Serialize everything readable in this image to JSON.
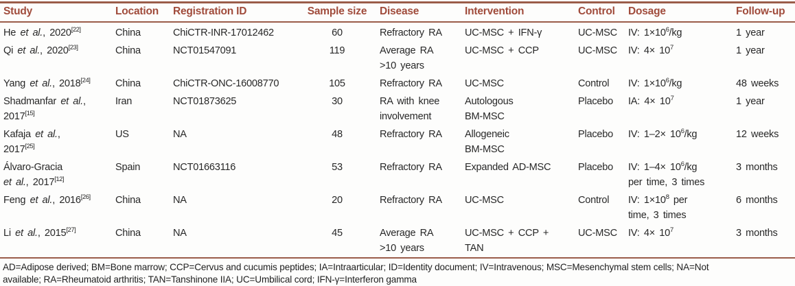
{
  "colors": {
    "header_text": "#a04b3b",
    "rule": "#9a5c49",
    "body_text": "#282828",
    "background": "#fdfdfc"
  },
  "table": {
    "columns": [
      {
        "key": "study",
        "label": "Study"
      },
      {
        "key": "location",
        "label": "Location"
      },
      {
        "key": "reg_id",
        "label": "Registration ID"
      },
      {
        "key": "sample_size",
        "label": "Sample size"
      },
      {
        "key": "disease",
        "label": "Disease"
      },
      {
        "key": "intervention",
        "label": "Intervention"
      },
      {
        "key": "control",
        "label": "Control"
      },
      {
        "key": "dosage",
        "label": "Dosage"
      },
      {
        "key": "follow_up",
        "label": "Follow-up"
      }
    ],
    "rows": [
      {
        "study": [
          {
            "t": "He "
          },
          {
            "t": "et al.",
            "i": true
          },
          {
            "t": ", 2020"
          },
          {
            "t": "[22]",
            "sup": true
          }
        ],
        "location": [
          {
            "t": "China"
          }
        ],
        "reg_id": [
          {
            "t": "ChiCTR-INR-17012462"
          }
        ],
        "sample_size": [
          {
            "t": "60"
          }
        ],
        "disease": [
          {
            "t": "Refractory RA"
          }
        ],
        "intervention": [
          {
            "t": "UC-MSC + IFN-γ"
          }
        ],
        "control": [
          {
            "t": "UC-MSC"
          }
        ],
        "dosage": [
          {
            "t": "IV: 1×10"
          },
          {
            "t": "6",
            "sup": true
          },
          {
            "t": "/kg"
          }
        ],
        "follow_up": [
          {
            "t": "1 year"
          }
        ]
      },
      {
        "study": [
          {
            "t": "Qi "
          },
          {
            "t": "et al.",
            "i": true
          },
          {
            "t": ", 2020"
          },
          {
            "t": "[23]",
            "sup": true
          }
        ],
        "location": [
          {
            "t": "China"
          }
        ],
        "reg_id": [
          {
            "t": "NCT01547091"
          }
        ],
        "sample_size": [
          {
            "t": "119"
          }
        ],
        "disease": [
          {
            "t": "Average RA"
          },
          {
            "br": true
          },
          {
            "t": ">10 years"
          }
        ],
        "intervention": [
          {
            "t": "UC-MSC + CCP"
          }
        ],
        "control": [
          {
            "t": "UC-MSC"
          }
        ],
        "dosage": [
          {
            "t": "IV: 4× 10"
          },
          {
            "t": "7",
            "sup": true
          }
        ],
        "follow_up": [
          {
            "t": "1 year"
          }
        ]
      },
      {
        "study": [
          {
            "t": "Yang "
          },
          {
            "t": "et al.",
            "i": true
          },
          {
            "t": ", 2018"
          },
          {
            "t": "[24]",
            "sup": true
          }
        ],
        "location": [
          {
            "t": "China"
          }
        ],
        "reg_id": [
          {
            "t": "ChiCTR-ONC-16008770"
          }
        ],
        "sample_size": [
          {
            "t": "105"
          }
        ],
        "disease": [
          {
            "t": "Refractory RA"
          }
        ],
        "intervention": [
          {
            "t": "UC-MSC"
          }
        ],
        "control": [
          {
            "t": "Control"
          }
        ],
        "dosage": [
          {
            "t": "IV: 1×10"
          },
          {
            "t": "6",
            "sup": true
          },
          {
            "t": "/kg"
          }
        ],
        "follow_up": [
          {
            "t": "48 weeks"
          }
        ]
      },
      {
        "study": [
          {
            "t": "Shadmanfar "
          },
          {
            "t": "et al.",
            "i": true
          },
          {
            "t": ","
          },
          {
            "br": true
          },
          {
            "t": "2017"
          },
          {
            "t": "[15]",
            "sup": true
          }
        ],
        "location": [
          {
            "t": "Iran"
          }
        ],
        "reg_id": [
          {
            "t": "NCT01873625"
          }
        ],
        "sample_size": [
          {
            "t": "30"
          }
        ],
        "disease": [
          {
            "t": "RA with knee"
          },
          {
            "br": true
          },
          {
            "t": "involvement"
          }
        ],
        "intervention": [
          {
            "t": "Autologous"
          },
          {
            "br": true
          },
          {
            "t": "BM-MSC"
          }
        ],
        "control": [
          {
            "t": "Placebo"
          }
        ],
        "dosage": [
          {
            "t": "IA: 4× 10"
          },
          {
            "t": "7",
            "sup": true
          }
        ],
        "follow_up": [
          {
            "t": "1 year"
          }
        ]
      },
      {
        "study": [
          {
            "t": "Kafaja "
          },
          {
            "t": "et al.",
            "i": true
          },
          {
            "t": ","
          },
          {
            "br": true
          },
          {
            "t": "2017"
          },
          {
            "t": "[25]",
            "sup": true
          }
        ],
        "location": [
          {
            "t": "US"
          }
        ],
        "reg_id": [
          {
            "t": "NA"
          }
        ],
        "sample_size": [
          {
            "t": "48"
          }
        ],
        "disease": [
          {
            "t": "Refractory RA"
          }
        ],
        "intervention": [
          {
            "t": "Allogeneic"
          },
          {
            "br": true
          },
          {
            "t": "BM-MSC"
          }
        ],
        "control": [
          {
            "t": "Placebo"
          }
        ],
        "dosage": [
          {
            "t": "IV: 1–2× 10"
          },
          {
            "t": "6",
            "sup": true
          },
          {
            "t": "/kg"
          }
        ],
        "follow_up": [
          {
            "t": "12 weeks"
          }
        ]
      },
      {
        "study": [
          {
            "t": "Álvaro-Gracia"
          },
          {
            "br": true
          },
          {
            "t": "et al.",
            "i": true
          },
          {
            "t": ", 2017"
          },
          {
            "t": "[12]",
            "sup": true
          }
        ],
        "location": [
          {
            "t": "Spain"
          }
        ],
        "reg_id": [
          {
            "t": "NCT01663116"
          }
        ],
        "sample_size": [
          {
            "t": "53"
          }
        ],
        "disease": [
          {
            "t": "Refractory RA"
          }
        ],
        "intervention": [
          {
            "t": "Expanded AD-MSC"
          }
        ],
        "control": [
          {
            "t": "Placebo"
          }
        ],
        "dosage": [
          {
            "t": "IV: 1–4× 10"
          },
          {
            "t": "6",
            "sup": true
          },
          {
            "t": "/kg"
          },
          {
            "br": true
          },
          {
            "t": "per time, 3 times"
          }
        ],
        "follow_up": [
          {
            "t": "3 months"
          }
        ]
      },
      {
        "study": [
          {
            "t": "Feng "
          },
          {
            "t": "et al.",
            "i": true
          },
          {
            "t": ", 2016"
          },
          {
            "t": "[26]",
            "sup": true
          }
        ],
        "location": [
          {
            "t": "China"
          }
        ],
        "reg_id": [
          {
            "t": "NA"
          }
        ],
        "sample_size": [
          {
            "t": "20"
          }
        ],
        "disease": [
          {
            "t": "Refractory RA"
          }
        ],
        "intervention": [
          {
            "t": "UC-MSC"
          }
        ],
        "control": [
          {
            "t": "Control"
          }
        ],
        "dosage": [
          {
            "t": "IV: 1×10"
          },
          {
            "t": "8",
            "sup": true
          },
          {
            "t": " per"
          },
          {
            "br": true
          },
          {
            "t": "time, 3 times"
          }
        ],
        "follow_up": [
          {
            "t": "6 months"
          }
        ]
      },
      {
        "study": [
          {
            "t": "Li "
          },
          {
            "t": "et al.",
            "i": true
          },
          {
            "t": ", 2015"
          },
          {
            "t": "[27]",
            "sup": true
          }
        ],
        "location": [
          {
            "t": "China"
          }
        ],
        "reg_id": [
          {
            "t": "NA"
          }
        ],
        "sample_size": [
          {
            "t": "45"
          }
        ],
        "disease": [
          {
            "t": "Average RA"
          },
          {
            "br": true
          },
          {
            "t": ">10 years"
          }
        ],
        "intervention": [
          {
            "t": "UC-MSC + CCP +"
          },
          {
            "br": true
          },
          {
            "t": "TAN"
          }
        ],
        "control": [
          {
            "t": "UC-MSC"
          }
        ],
        "dosage": [
          {
            "t": "IV: 4× 10"
          },
          {
            "t": "7",
            "sup": true
          }
        ],
        "follow_up": [
          {
            "t": "3 months"
          }
        ]
      }
    ]
  },
  "footnote": {
    "lines": [
      "AD=Adipose derived; BM=Bone marrow; CCP=Cervus and cucumis peptides; IA=Intraarticular; ID=Identity document; IV=Intravenous; MSC=Mesenchymal stem cells; NA=Not",
      "available; RA=Rheumatoid arthritis; TAN=Tanshinone IIA; UC=Umbilical cord; IFN-γ=Interferon gamma"
    ]
  }
}
